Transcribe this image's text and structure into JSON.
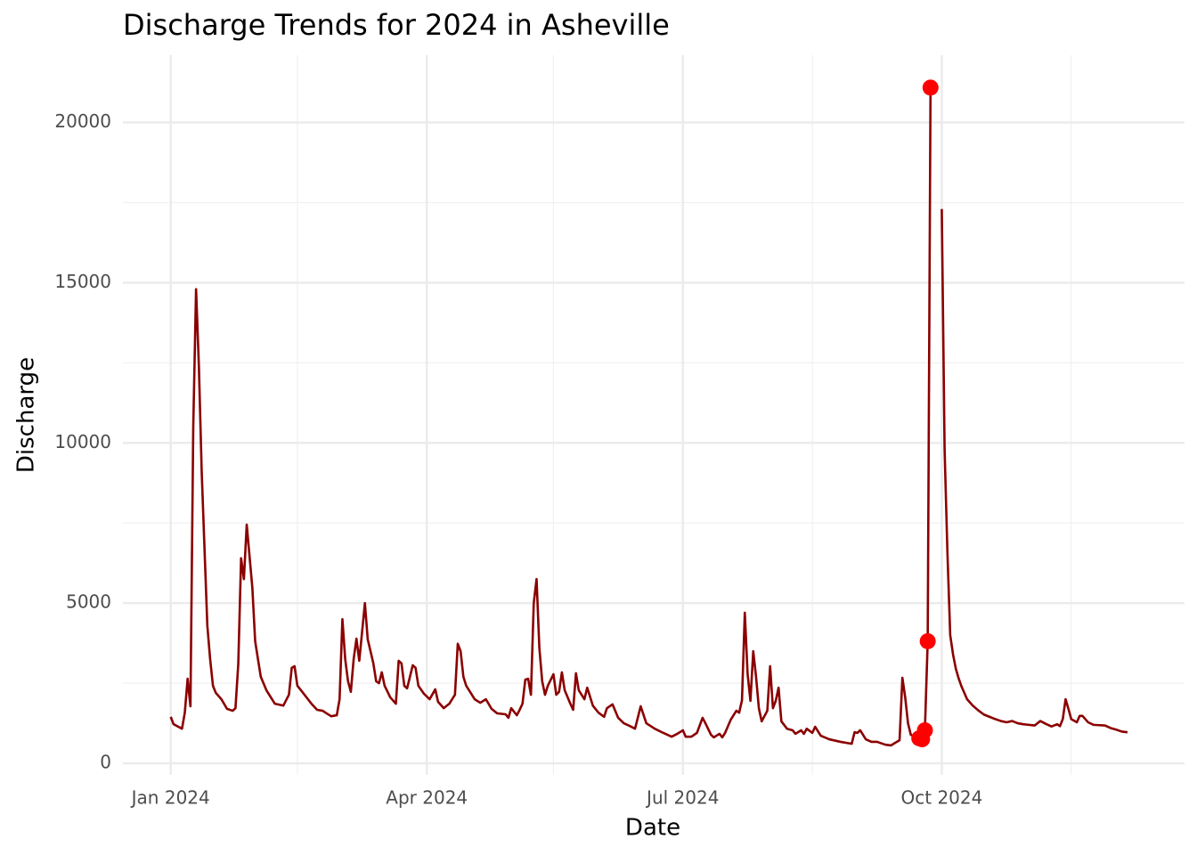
{
  "chart_data": {
    "type": "line",
    "title": "Discharge Trends for 2024 in Asheville",
    "x_label": "Date",
    "y_label": "Discharge",
    "xlim": [
      "2023-12-15",
      "2024-12-25"
    ],
    "ylim": [
      -360,
      22100
    ],
    "xticks": [
      {
        "value": "2024-01-01",
        "label": "Jan 2024"
      },
      {
        "value": "2024-04-01",
        "label": "Apr 2024"
      },
      {
        "value": "2024-07-01",
        "label": "Jul 2024"
      },
      {
        "value": "2024-10-01",
        "label": "Oct 2024"
      }
    ],
    "x_minor_gridlines": [
      "2024-02-15",
      "2024-05-16",
      "2024-08-16",
      "2024-11-16"
    ],
    "yticks": [
      0,
      5000,
      10000,
      15000,
      20000
    ],
    "y_minor_gridlines": [
      2500,
      7500,
      12500,
      17500
    ],
    "grid": true,
    "x": [
      "2024-01-01",
      "2024-01-02",
      "2024-01-05",
      "2024-01-06",
      "2024-01-07",
      "2024-01-08",
      "2024-01-09",
      "2024-01-10",
      "2024-01-11",
      "2024-01-12",
      "2024-01-14",
      "2024-01-15",
      "2024-01-16",
      "2024-01-17",
      "2024-01-19",
      "2024-01-21",
      "2024-01-23",
      "2024-01-24",
      "2024-01-25",
      "2024-01-26",
      "2024-01-27",
      "2024-01-28",
      "2024-01-30",
      "2024-01-31",
      "2024-02-01",
      "2024-02-02",
      "2024-02-04",
      "2024-02-07",
      "2024-02-10",
      "2024-02-12",
      "2024-02-13",
      "2024-02-14",
      "2024-02-15",
      "2024-02-17",
      "2024-02-20",
      "2024-02-22",
      "2024-02-24",
      "2024-02-25",
      "2024-02-27",
      "2024-02-29",
      "2024-03-01",
      "2024-03-02",
      "2024-03-03",
      "2024-03-04",
      "2024-03-05",
      "2024-03-06",
      "2024-03-07",
      "2024-03-08",
      "2024-03-10",
      "2024-03-11",
      "2024-03-13",
      "2024-03-14",
      "2024-03-15",
      "2024-03-16",
      "2024-03-17",
      "2024-03-19",
      "2024-03-21",
      "2024-03-22",
      "2024-03-23",
      "2024-03-24",
      "2024-03-25",
      "2024-03-27",
      "2024-03-28",
      "2024-03-29",
      "2024-03-31",
      "2024-04-02",
      "2024-04-04",
      "2024-04-05",
      "2024-04-07",
      "2024-04-09",
      "2024-04-11",
      "2024-04-12",
      "2024-04-13",
      "2024-04-14",
      "2024-04-15",
      "2024-04-18",
      "2024-04-20",
      "2024-04-22",
      "2024-04-24",
      "2024-04-26",
      "2024-04-29",
      "2024-04-30",
      "2024-05-01",
      "2024-05-03",
      "2024-05-04",
      "2024-05-05",
      "2024-05-06",
      "2024-05-07",
      "2024-05-08",
      "2024-05-09",
      "2024-05-10",
      "2024-05-11",
      "2024-05-12",
      "2024-05-13",
      "2024-05-14",
      "2024-05-16",
      "2024-05-17",
      "2024-05-18",
      "2024-05-19",
      "2024-05-20",
      "2024-05-22",
      "2024-05-23",
      "2024-05-24",
      "2024-05-25",
      "2024-05-27",
      "2024-05-28",
      "2024-05-30",
      "2024-06-01",
      "2024-06-03",
      "2024-06-04",
      "2024-06-06",
      "2024-06-08",
      "2024-06-10",
      "2024-06-12",
      "2024-06-14",
      "2024-06-16",
      "2024-06-18",
      "2024-06-21",
      "2024-06-24",
      "2024-06-27",
      "2024-06-29",
      "2024-07-01",
      "2024-07-02",
      "2024-07-04",
      "2024-07-06",
      "2024-07-08",
      "2024-07-09",
      "2024-07-11",
      "2024-07-12",
      "2024-07-14",
      "2024-07-15",
      "2024-07-16",
      "2024-07-18",
      "2024-07-20",
      "2024-07-21",
      "2024-07-22",
      "2024-07-23",
      "2024-07-24",
      "2024-07-25",
      "2024-07-26",
      "2024-07-27",
      "2024-07-28",
      "2024-07-29",
      "2024-07-31",
      "2024-08-01",
      "2024-08-02",
      "2024-08-03",
      "2024-08-04",
      "2024-08-05",
      "2024-08-07",
      "2024-08-09",
      "2024-08-10",
      "2024-08-12",
      "2024-08-13",
      "2024-08-14",
      "2024-08-16",
      "2024-08-17",
      "2024-08-19",
      "2024-08-22",
      "2024-08-26",
      "2024-08-30",
      "2024-08-31",
      "2024-09-01",
      "2024-09-02",
      "2024-09-04",
      "2024-09-06",
      "2024-09-08",
      "2024-09-11",
      "2024-09-13",
      "2024-09-15",
      "2024-09-16",
      "2024-09-17",
      "2024-09-18",
      "2024-09-19",
      "2024-09-20",
      "2024-09-23",
      "2024-09-24",
      "2024-09-25",
      "2024-09-26",
      "2024-09-27",
      "2024-09-28",
      "2024-10-01",
      "2024-10-02",
      "2024-10-03",
      "2024-10-04",
      "2024-10-05",
      "2024-10-06",
      "2024-10-07",
      "2024-10-08",
      "2024-10-09",
      "2024-10-10",
      "2024-10-12",
      "2024-10-14",
      "2024-10-16",
      "2024-10-18",
      "2024-10-20",
      "2024-10-22",
      "2024-10-24",
      "2024-10-26",
      "2024-10-28",
      "2024-10-30",
      "2024-11-01",
      "2024-11-03",
      "2024-11-05",
      "2024-11-07",
      "2024-11-09",
      "2024-11-11",
      "2024-11-12",
      "2024-11-13",
      "2024-11-14",
      "2024-11-15",
      "2024-11-16",
      "2024-11-18",
      "2024-11-19",
      "2024-11-20",
      "2024-11-22",
      "2024-11-24",
      "2024-11-26",
      "2024-11-28",
      "2024-11-30",
      "2024-12-02",
      "2024-12-04",
      "2024-12-06"
    ],
    "series": [
      {
        "name": "Discharge",
        "color": "#8b0000",
        "values": [
          1450,
          1220,
          1080,
          1580,
          2640,
          1780,
          10500,
          14800,
          12400,
          9100,
          4300,
          3250,
          2420,
          2200,
          2000,
          1700,
          1640,
          1720,
          3100,
          6400,
          5750,
          7450,
          5480,
          3810,
          3250,
          2700,
          2280,
          1860,
          1800,
          2140,
          2980,
          3030,
          2420,
          2200,
          1860,
          1670,
          1640,
          1580,
          1470,
          1500,
          2000,
          4500,
          3250,
          2560,
          2230,
          3250,
          3890,
          3200,
          5000,
          3870,
          3120,
          2560,
          2500,
          2840,
          2420,
          2060,
          1860,
          3200,
          3120,
          2420,
          2340,
          3060,
          2980,
          2420,
          2170,
          2000,
          2310,
          1920,
          1720,
          1860,
          2140,
          3730,
          3500,
          2700,
          2420,
          2000,
          1890,
          2000,
          1700,
          1560,
          1530,
          1420,
          1720,
          1500,
          1670,
          1860,
          2610,
          2640,
          2140,
          5000,
          5750,
          3590,
          2560,
          2140,
          2420,
          2780,
          2140,
          2230,
          2840,
          2280,
          1860,
          1670,
          2810,
          2280,
          2000,
          2360,
          1800,
          1580,
          1450,
          1720,
          1840,
          1420,
          1250,
          1170,
          1080,
          1780,
          1250,
          1080,
          950,
          830,
          920,
          1030,
          830,
          830,
          950,
          1420,
          1250,
          890,
          810,
          920,
          810,
          950,
          1360,
          1640,
          1580,
          1970,
          4700,
          2780,
          1950,
          3500,
          2700,
          1720,
          1310,
          1640,
          3030,
          1720,
          1950,
          2360,
          1310,
          1080,
          1030,
          920,
          1030,
          920,
          1080,
          950,
          1140,
          860,
          750,
          670,
          610,
          970,
          950,
          1030,
          750,
          670,
          670,
          580,
          560,
          670,
          720,
          2670,
          2060,
          1250,
          890,
          780,
          750,
          1030,
          3810,
          21090,
          null,
          17300,
          9800,
          6600,
          4000,
          3400,
          2950,
          2650,
          2400,
          2200,
          2000,
          1800,
          1650,
          1520,
          1450,
          1380,
          1320,
          1280,
          1320,
          1250,
          1220,
          1200,
          1180,
          1320,
          1230,
          1150,
          1220,
          1160,
          1380,
          2000,
          1700,
          1380,
          1280,
          1480,
          1480,
          1280,
          1200,
          1190,
          1180,
          1100,
          1050,
          990,
          970
        ]
      }
    ],
    "highlight": {
      "color": "#ff0000",
      "x": [
        "2024-09-23",
        "2024-09-24",
        "2024-09-25",
        "2024-09-26",
        "2024-09-27"
      ],
      "values": [
        780,
        750,
        1030,
        3810,
        21090
      ]
    }
  }
}
